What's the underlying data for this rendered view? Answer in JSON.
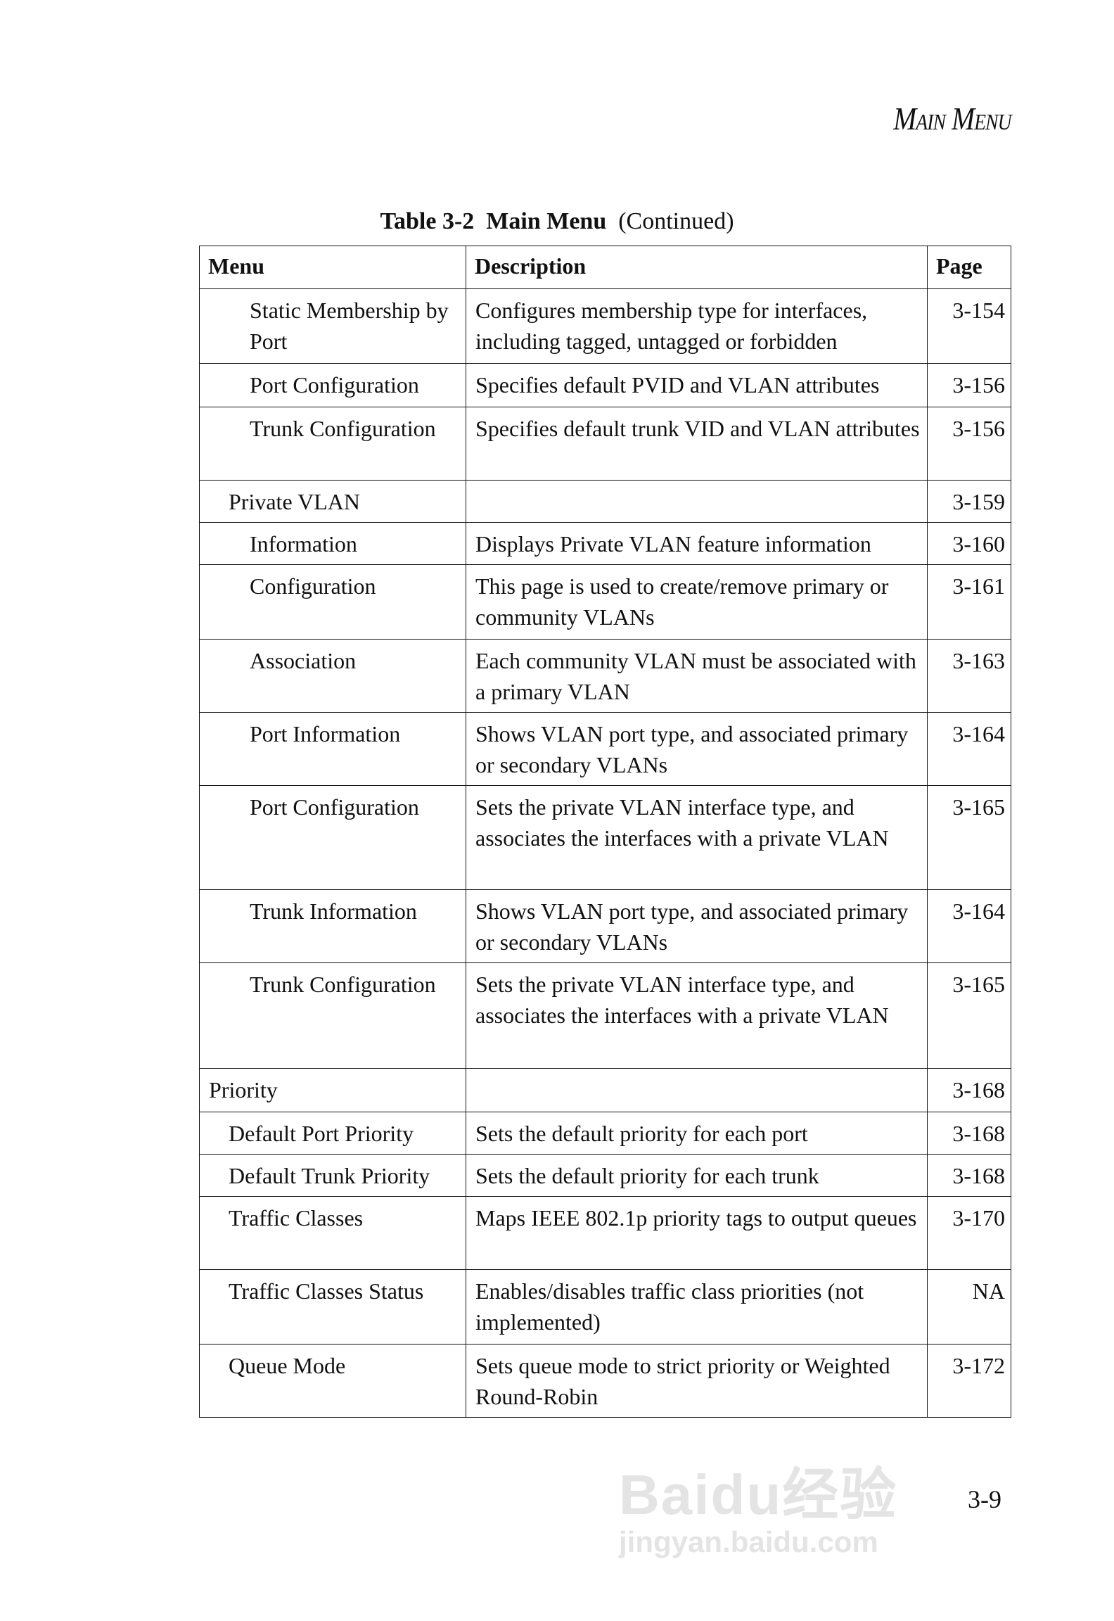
{
  "running_head": "Main Menu",
  "caption": {
    "label": "Table 3-2",
    "title": "Main Menu",
    "note": "(Continued)"
  },
  "table": {
    "headers": [
      "Menu",
      "Description",
      "Page"
    ],
    "rows": [
      {
        "menu": "Static Membership by Port",
        "level": 2,
        "description": "Configures membership type for interfaces, including tagged, untagged or forbidden",
        "page": "3-154"
      },
      {
        "menu": "Port Configuration",
        "level": 2,
        "description": "Specifies default PVID and VLAN attributes",
        "page": "3-156"
      },
      {
        "menu": "Trunk Configuration",
        "level": 2,
        "description": "Specifies default trunk VID and VLAN attributes",
        "page": "3-156"
      },
      {
        "menu": "Private VLAN",
        "level": 1,
        "description": "",
        "page": "3-159"
      },
      {
        "menu": "Information",
        "level": 2,
        "description": "Displays Private VLAN feature information",
        "page": "3-160"
      },
      {
        "menu": "Configuration",
        "level": 2,
        "description": "This page is used to create/remove primary or community VLANs",
        "page": "3-161"
      },
      {
        "menu": "Association",
        "level": 2,
        "description": "Each community VLAN must be associated with a primary VLAN",
        "page": "3-163"
      },
      {
        "menu": "Port Information",
        "level": 2,
        "description": "Shows VLAN port type, and associated primary or secondary VLANs",
        "page": "3-164"
      },
      {
        "menu": "Port Configuration",
        "level": 2,
        "description": "Sets the private VLAN interface type, and associates the interfaces with a private VLAN",
        "page": "3-165"
      },
      {
        "menu": "Trunk Information",
        "level": 2,
        "description": "Shows VLAN port type, and associated primary or secondary VLANs",
        "page": "3-164"
      },
      {
        "menu": "Trunk Configuration",
        "level": 2,
        "description": "Sets the private VLAN interface type, and associates the interfaces with a private VLAN",
        "page": "3-165"
      },
      {
        "menu": "Priority",
        "level": 0,
        "description": "",
        "page": "3-168"
      },
      {
        "menu": "Default Port Priority",
        "level": 1,
        "description": "Sets the default priority for each port",
        "page": "3-168"
      },
      {
        "menu": "Default Trunk Priority",
        "level": 1,
        "description": "Sets the default priority for each trunk",
        "page": "3-168"
      },
      {
        "menu": "Traffic Classes",
        "level": 1,
        "description": "Maps IEEE 802.1p priority tags to output queues",
        "page": "3-170"
      },
      {
        "menu": "Traffic Classes Status",
        "level": 1,
        "description": "Enables/disables traffic class priorities (not implemented)",
        "page": "NA"
      },
      {
        "menu": "Queue Mode",
        "level": 1,
        "description": "Sets queue mode to strict priority or Weighted Round-Robin",
        "page": "3-172"
      }
    ]
  },
  "folio": "3-9",
  "watermark": {
    "line1": "Baidu经验",
    "line2": "jingyan.baidu.com"
  }
}
